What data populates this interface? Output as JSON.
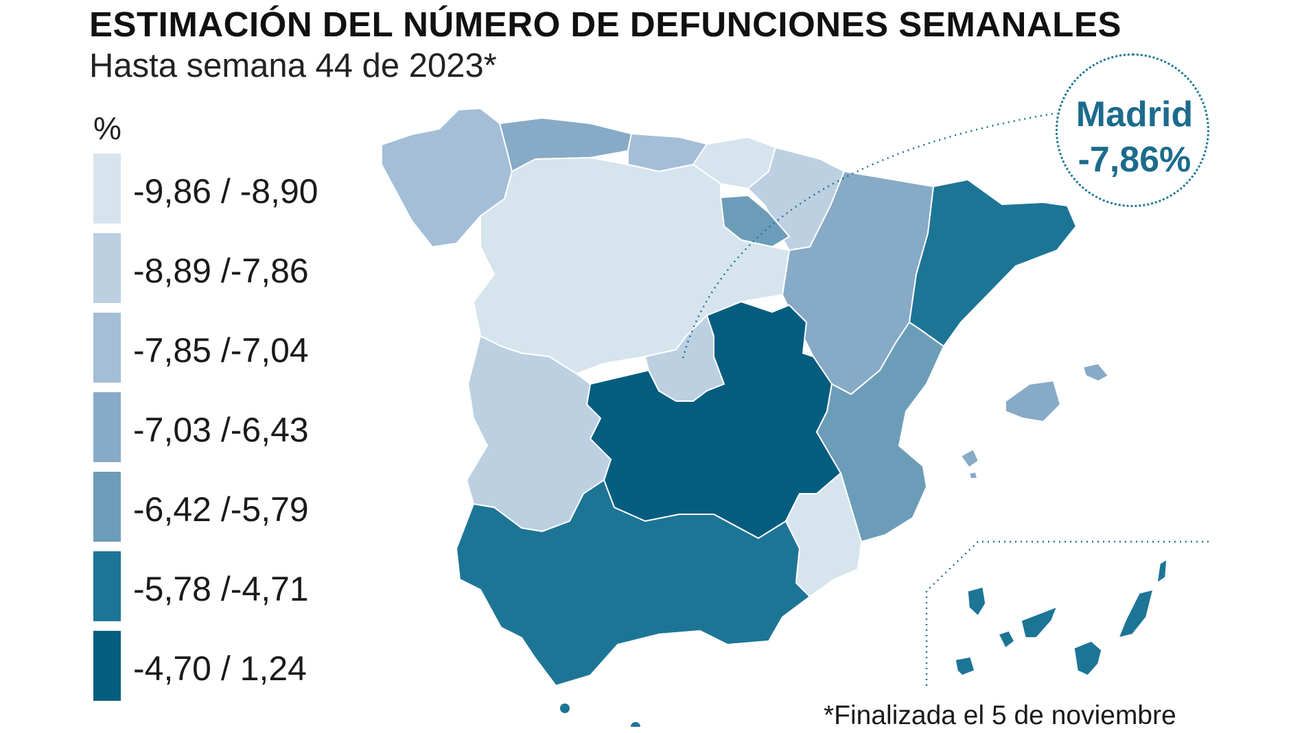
{
  "title": "ESTIMACIÓN DEL NÚMERO DE DEFUNCIONES SEMANALES",
  "subtitle": "Hasta semana 44 de 2023*",
  "legend": {
    "unit": "%",
    "items": [
      {
        "label": "-9,86 / -8,90",
        "color": "#d6e4ee"
      },
      {
        "label": "-8,89 /-7,86",
        "color": "#bcd0e2"
      },
      {
        "label": "-7,85 /-7,04",
        "color": "#a3bed6"
      },
      {
        "label": "-7,03 /-6,43",
        "color": "#87aac7"
      },
      {
        "label": "-6,42 /-5,79",
        "color": "#6c9db8"
      },
      {
        "label": "-5,78 /-4,71",
        "color": "#1d7596"
      },
      {
        "label": "-4,70 / 1,24",
        "color": "#045d7f"
      }
    ]
  },
  "callout": {
    "region": "Madrid",
    "value": "-7,86%"
  },
  "footnote": "*Finalizada el 5 de noviembre",
  "regions": [
    {
      "name": "Galicia",
      "class": 2
    },
    {
      "name": "Asturias",
      "class": 3
    },
    {
      "name": "Cantabria",
      "class": 2
    },
    {
      "name": "País Vasco",
      "class": 0
    },
    {
      "name": "Navarra",
      "class": 1
    },
    {
      "name": "La Rioja",
      "class": 4
    },
    {
      "name": "Aragón",
      "class": 3
    },
    {
      "name": "Cataluña",
      "class": 5
    },
    {
      "name": "Castilla y León",
      "class": 0
    },
    {
      "name": "Madrid",
      "class": 1
    },
    {
      "name": "Castilla-La Mancha",
      "class": 6
    },
    {
      "name": "Comunidad Valenciana",
      "class": 4
    },
    {
      "name": "Extremadura",
      "class": 1
    },
    {
      "name": "Andalucía",
      "class": 5
    },
    {
      "name": "Murcia",
      "class": 0
    },
    {
      "name": "Islas Baleares",
      "class": 3
    },
    {
      "name": "Canarias",
      "class": 5
    },
    {
      "name": "Ceuta",
      "class": 5
    },
    {
      "name": "Melilla",
      "class": 5
    }
  ]
}
